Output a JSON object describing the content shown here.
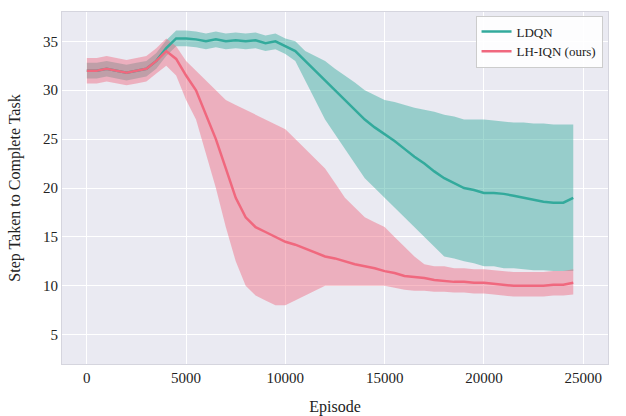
{
  "chart_data": {
    "type": "line",
    "x_label": "Episode",
    "y_label": "Step Taken to Complete Task",
    "xlim": [
      -1250,
      26250
    ],
    "xticks": [
      0,
      5000,
      10000,
      15000,
      20000,
      25000
    ],
    "ylim": [
      2,
      38
    ],
    "yticks": [
      5,
      10,
      15,
      20,
      25,
      30,
      35
    ],
    "grid": true,
    "legend": "upper right",
    "x": [
      0,
      500,
      1000,
      1500,
      2000,
      2500,
      3000,
      3500,
      4000,
      4500,
      5000,
      5500,
      6000,
      6500,
      7000,
      7500,
      8000,
      8500,
      9000,
      9500,
      10000,
      10500,
      11000,
      11500,
      12000,
      12500,
      13000,
      13500,
      14000,
      14500,
      15000,
      15500,
      16000,
      16500,
      17000,
      17500,
      18000,
      18500,
      19000,
      19500,
      20000,
      20500,
      21000,
      21500,
      22000,
      22500,
      23000,
      23500,
      24000,
      24500
    ],
    "series": [
      {
        "name": "LH-IQN (ours)",
        "color": "#f0687e",
        "values": [
          32,
          32,
          32.2,
          32,
          31.8,
          32,
          32.2,
          33,
          34,
          33.2,
          31.5,
          30,
          27.5,
          25,
          22,
          19,
          17,
          16,
          15.5,
          15,
          14.5,
          14.2,
          13.8,
          13.4,
          13,
          12.8,
          12.5,
          12.2,
          12,
          11.8,
          11.5,
          11.3,
          11,
          10.9,
          10.8,
          10.6,
          10.5,
          10.4,
          10.4,
          10.3,
          10.3,
          10.2,
          10.1,
          10,
          10,
          10,
          10,
          10.1,
          10.1,
          10.3
        ],
        "lower": [
          30.7,
          30.7,
          30.9,
          30.7,
          30.5,
          30.7,
          30.9,
          31.7,
          32.5,
          31.5,
          29,
          27,
          23.5,
          20,
          16,
          12.5,
          10,
          9,
          8.5,
          8,
          8,
          8.5,
          9,
          9.5,
          10,
          10,
          10,
          10,
          10,
          10,
          10,
          9.8,
          9.6,
          9.5,
          9.5,
          9.4,
          9.4,
          9.3,
          9.3,
          9.2,
          9.2,
          9.1,
          9,
          8.9,
          8.9,
          8.9,
          8.9,
          9,
          9,
          9.1
        ],
        "upper": [
          33.3,
          33.3,
          33.5,
          33.3,
          33.1,
          33.3,
          33.5,
          34.3,
          35.3,
          34.5,
          33,
          32,
          31,
          30,
          29,
          28.5,
          28,
          27.5,
          27,
          26.5,
          26,
          25,
          24,
          23,
          22,
          20.5,
          19,
          18,
          17,
          16.5,
          16,
          15,
          14,
          13,
          12.2,
          12,
          12,
          11.8,
          11.8,
          11.7,
          11.7,
          11.6,
          11.5,
          11.4,
          11.4,
          11.4,
          11.4,
          11.5,
          11.5,
          11.7
        ]
      },
      {
        "name": "LDQN",
        "color": "#33aa9c",
        "values": [
          32,
          32,
          32.2,
          32,
          31.8,
          32,
          32.2,
          33,
          34.3,
          35.3,
          35.3,
          35.2,
          35,
          35.2,
          35,
          35.1,
          35,
          35.1,
          34.8,
          35,
          34.5,
          34,
          33,
          32,
          31,
          30,
          29,
          28,
          27,
          26.2,
          25.5,
          24.8,
          24,
          23.2,
          22.5,
          21.7,
          21,
          20.5,
          20,
          19.8,
          19.5,
          19.5,
          19.4,
          19.2,
          19,
          18.8,
          18.6,
          18.5,
          18.5,
          19
        ],
        "lower": [
          31.2,
          31.2,
          31.4,
          31.2,
          31,
          31.2,
          31.4,
          32.2,
          33.5,
          34.5,
          34.5,
          34.4,
          34.2,
          34.4,
          34.2,
          34.3,
          34.2,
          34.3,
          34,
          34.2,
          33.7,
          33,
          31,
          29,
          27,
          25.5,
          24,
          22.5,
          21,
          20,
          19,
          18,
          17,
          16,
          15,
          14,
          13,
          12.8,
          12.5,
          12.3,
          12,
          12,
          11.8,
          11.8,
          11.7,
          11.6,
          11.6,
          11.5,
          11.5,
          11.5
        ],
        "upper": [
          32.8,
          32.8,
          33,
          32.8,
          32.6,
          32.8,
          33,
          33.8,
          35.1,
          36.1,
          36.1,
          36,
          35.8,
          36,
          35.8,
          35.9,
          35.8,
          35.9,
          35.6,
          35.8,
          35.3,
          35,
          34,
          33.5,
          33,
          32.2,
          31.5,
          30.8,
          30,
          29.5,
          29,
          28.8,
          28.5,
          28.2,
          28,
          27.8,
          27.5,
          27.3,
          27,
          27,
          27,
          26.9,
          26.8,
          26.7,
          26.7,
          26.6,
          26.6,
          26.5,
          26.5,
          26.5
        ]
      }
    ]
  }
}
